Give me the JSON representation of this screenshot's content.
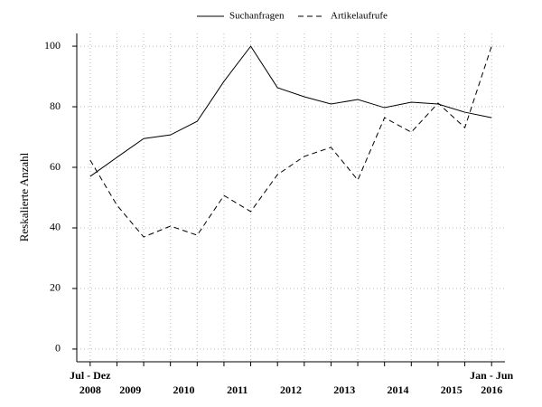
{
  "chart_data": {
    "type": "line",
    "ylabel": "Reskalierte Anzahl",
    "x": [
      0,
      1,
      2,
      3,
      4,
      5,
      6,
      7,
      8,
      9,
      10,
      11,
      12,
      13,
      14,
      15
    ],
    "xlim": [
      -0.5,
      15.5
    ],
    "xticks": [
      {
        "value": 0,
        "label": "2008"
      },
      {
        "value": 1.5,
        "label": "2009"
      },
      {
        "value": 3.5,
        "label": "2010"
      },
      {
        "value": 5.5,
        "label": "2011"
      },
      {
        "value": 7.5,
        "label": "2012"
      },
      {
        "value": 9.5,
        "label": "2013"
      },
      {
        "value": 11.5,
        "label": "2014"
      },
      {
        "value": 13.5,
        "label": "2015"
      },
      {
        "value": 15,
        "label": "2016"
      }
    ],
    "xtick_sublabels": [
      {
        "value": 0,
        "label": "Jul - Dez"
      },
      {
        "value": 15,
        "label": "Jan - Jun"
      }
    ],
    "ylim": [
      -4.2,
      104.2
    ],
    "yticks": [
      0,
      20,
      40,
      60,
      80,
      100
    ],
    "grid": true,
    "legend": "top",
    "series": [
      {
        "name": "Suchanfragen",
        "color": "#000000",
        "dash": "solid",
        "values": [
          57,
          63.3,
          69.5,
          70.7,
          75.2,
          88.4,
          100,
          86.3,
          83.3,
          80.9,
          82.4,
          79.7,
          81.5,
          80.9,
          78.2,
          76.4
        ]
      },
      {
        "name": "Artikelaufrufe",
        "color": "#000000",
        "dash": "dashed",
        "values": [
          62.4,
          47.5,
          37,
          40.6,
          37.6,
          50.7,
          45.4,
          57.6,
          63.6,
          66.6,
          55.8,
          76.4,
          71.6,
          81.2,
          73.1,
          100
        ]
      }
    ]
  }
}
